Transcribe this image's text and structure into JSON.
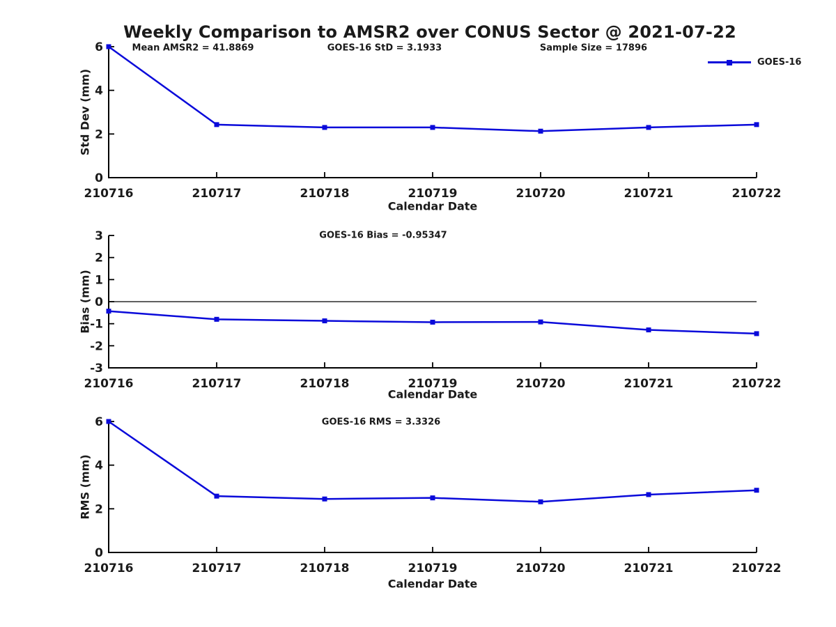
{
  "title": "Weekly Comparison to AMSR2 over CONUS Sector @ 2021-07-22",
  "legend": {
    "label": "GOES-16",
    "position": "upper-right-outside"
  },
  "colors": {
    "line_color": "#0a0ada",
    "axis_color": "#000000",
    "zero_line_color": "#000000",
    "text_color": "#1a1a1a",
    "background": "#ffffff"
  },
  "chart_data": [
    {
      "type": "line",
      "ylabel": "Std Dev (mm)",
      "xlabel": "Calendar Date",
      "categories": [
        "210716",
        "210717",
        "210718",
        "210719",
        "210720",
        "210721",
        "210722"
      ],
      "series": [
        {
          "name": "GOES-16",
          "values": [
            6.0,
            2.43,
            2.3,
            2.3,
            2.13,
            2.3,
            2.43
          ]
        }
      ],
      "ylim": [
        0,
        6
      ],
      "yticks": [
        0,
        2,
        4,
        6
      ],
      "grid": false,
      "zero_line": false,
      "marker": "square",
      "annotations": [
        "Mean AMSR2 = 41.8869",
        "GOES-16 StD = 3.1933",
        "Sample Size = 17896"
      ]
    },
    {
      "type": "line",
      "ylabel": "Bias (mm)",
      "xlabel": "Calendar Date",
      "categories": [
        "210716",
        "210717",
        "210718",
        "210719",
        "210720",
        "210721",
        "210722"
      ],
      "series": [
        {
          "name": "GOES-16",
          "values": [
            -0.43,
            -0.8,
            -0.87,
            -0.93,
            -0.92,
            -1.28,
            -1.45
          ]
        }
      ],
      "ylim": [
        -3,
        3
      ],
      "yticks": [
        -3,
        -2,
        -1,
        0,
        1,
        2,
        3
      ],
      "grid": false,
      "zero_line": true,
      "marker": "square",
      "annotations": [
        "GOES-16 Bias  = -0.95347"
      ]
    },
    {
      "type": "line",
      "ylabel": "RMS (mm)",
      "xlabel": "Calendar Date",
      "categories": [
        "210716",
        "210717",
        "210718",
        "210719",
        "210720",
        "210721",
        "210722"
      ],
      "series": [
        {
          "name": "GOES-16",
          "values": [
            6.0,
            2.58,
            2.45,
            2.5,
            2.32,
            2.65,
            2.85
          ]
        }
      ],
      "ylim": [
        0,
        6
      ],
      "yticks": [
        0,
        2,
        4,
        6
      ],
      "grid": false,
      "zero_line": false,
      "marker": "square",
      "annotations": [
        "GOES-16 RMS = 3.3326"
      ]
    }
  ]
}
